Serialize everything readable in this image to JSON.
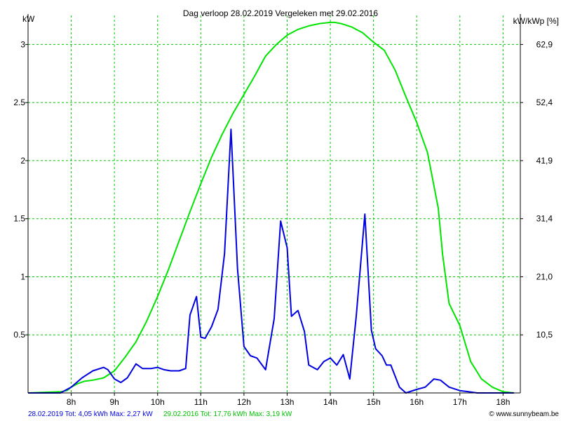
{
  "chart_data": {
    "type": "line",
    "title": "Dag  verloop 28.02.2019   Vergeleken met 29.02.2016",
    "ylabel_left": "kW",
    "ylabel_right": "kW/kWp [%]",
    "ylim": [
      0,
      3.25
    ],
    "xlim": [
      7.0,
      18.4
    ],
    "left_ticks": [
      {
        "value": 0.5,
        "label": "0.5"
      },
      {
        "value": 1,
        "label": "1"
      },
      {
        "value": 1.5,
        "label": "1.5"
      },
      {
        "value": 2,
        "label": "2"
      },
      {
        "value": 2.5,
        "label": "2.5"
      },
      {
        "value": 3,
        "label": "3"
      }
    ],
    "right_ticks": [
      {
        "value": 0.5,
        "label": "10,5"
      },
      {
        "value": 1,
        "label": "21,0"
      },
      {
        "value": 1.5,
        "label": "31,4"
      },
      {
        "value": 2,
        "label": "41,9"
      },
      {
        "value": 2.5,
        "label": "52,4"
      },
      {
        "value": 3,
        "label": "62,9"
      }
    ],
    "x_ticks": [
      {
        "value": 8,
        "label": "8h"
      },
      {
        "value": 9,
        "label": "9h"
      },
      {
        "value": 10,
        "label": "10h"
      },
      {
        "value": 11,
        "label": "11h"
      },
      {
        "value": 12,
        "label": "12h"
      },
      {
        "value": 13,
        "label": "13h"
      },
      {
        "value": 14,
        "label": "14h"
      },
      {
        "value": 15,
        "label": "15h"
      },
      {
        "value": 16,
        "label": "16h"
      },
      {
        "value": 17,
        "label": "17h"
      },
      {
        "value": 18,
        "label": "18h"
      }
    ],
    "grid": true,
    "series": [
      {
        "color": "#00e400",
        "x": [
          7.0,
          7.75,
          7.9,
          8.0,
          8.15,
          8.3,
          8.5,
          8.75,
          9.0,
          9.25,
          9.5,
          9.75,
          10.0,
          10.25,
          10.5,
          10.75,
          11.0,
          11.25,
          11.5,
          11.75,
          12.0,
          12.25,
          12.5,
          12.75,
          13.0,
          13.25,
          13.5,
          13.75,
          14.0,
          14.1,
          14.25,
          14.5,
          14.75,
          15.0,
          15.25,
          15.5,
          15.75,
          16.0,
          16.25,
          16.5,
          16.6,
          16.75,
          17.0,
          17.25,
          17.5,
          17.75,
          18.0,
          18.25
        ],
        "y": [
          0.0,
          0.01,
          0.02,
          0.05,
          0.08,
          0.1,
          0.11,
          0.13,
          0.19,
          0.31,
          0.44,
          0.62,
          0.83,
          1.06,
          1.31,
          1.56,
          1.8,
          2.03,
          2.23,
          2.41,
          2.57,
          2.73,
          2.9,
          3.0,
          3.08,
          3.13,
          3.16,
          3.18,
          3.19,
          3.19,
          3.18,
          3.15,
          3.1,
          3.02,
          2.95,
          2.78,
          2.55,
          2.33,
          2.07,
          1.59,
          1.19,
          0.77,
          0.58,
          0.27,
          0.12,
          0.05,
          0.01,
          0.0
        ]
      },
      {
        "color": "#0000e0",
        "x": [
          7.0,
          7.75,
          8.0,
          8.25,
          8.5,
          8.75,
          8.85,
          9.0,
          9.15,
          9.3,
          9.5,
          9.65,
          9.85,
          10.0,
          10.15,
          10.3,
          10.5,
          10.65,
          10.75,
          10.9,
          11.0,
          11.1,
          11.25,
          11.4,
          11.55,
          11.7,
          11.85,
          12.0,
          12.15,
          12.3,
          12.5,
          12.7,
          12.85,
          13.0,
          13.1,
          13.25,
          13.4,
          13.5,
          13.7,
          13.85,
          14.0,
          14.15,
          14.3,
          14.45,
          14.6,
          14.8,
          14.95,
          15.05,
          15.2,
          15.3,
          15.4,
          15.6,
          15.75,
          16.0,
          16.2,
          16.4,
          16.55,
          16.75,
          17.0,
          17.2,
          17.4,
          17.55,
          17.8,
          18.0,
          18.25
        ],
        "y": [
          0.0,
          0.0,
          0.05,
          0.13,
          0.19,
          0.22,
          0.2,
          0.12,
          0.09,
          0.13,
          0.25,
          0.21,
          0.21,
          0.22,
          0.2,
          0.19,
          0.19,
          0.21,
          0.67,
          0.83,
          0.48,
          0.47,
          0.57,
          0.72,
          1.2,
          2.27,
          1.07,
          0.4,
          0.32,
          0.3,
          0.2,
          0.64,
          1.48,
          1.25,
          0.66,
          0.71,
          0.53,
          0.24,
          0.2,
          0.27,
          0.3,
          0.24,
          0.33,
          0.12,
          0.66,
          1.54,
          0.54,
          0.38,
          0.32,
          0.24,
          0.24,
          0.05,
          0.0,
          0.03,
          0.05,
          0.12,
          0.11,
          0.05,
          0.02,
          0.01,
          0.0,
          0.0,
          0.0,
          0.0,
          0.0
        ]
      }
    ]
  },
  "footer": {
    "blue_text": "28.02.2019 Tot: 4,05 kWh Max: 2,27 kW",
    "green_text": "29.02.2016 Tot: 17,76 kWh Max: 3,19 kW",
    "credit": "© www.sunnybeam.be"
  }
}
